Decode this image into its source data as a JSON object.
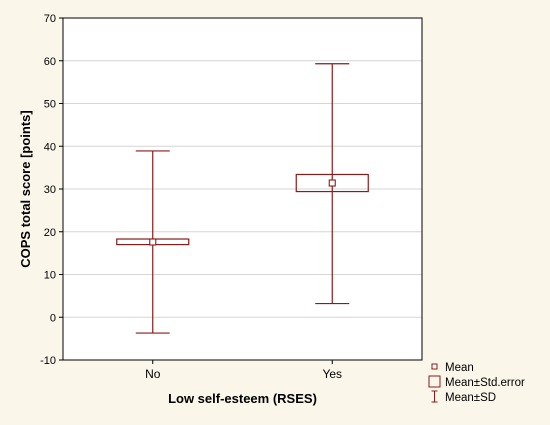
{
  "chart_data": {
    "type": "box",
    "title": "",
    "xlabel": "Low self-esteem (RSES)",
    "ylabel": "COPS total score [points]",
    "ylim": [
      -10,
      70
    ],
    "yticks": [
      -10,
      0,
      10,
      20,
      30,
      40,
      50,
      60,
      70
    ],
    "grid": true,
    "categories": [
      "No",
      "Yes"
    ],
    "series": [
      {
        "category": "No",
        "mean": 17.6,
        "se_low": 17.0,
        "se_high": 18.3,
        "sd_low": -3.7,
        "sd_high": 38.9
      },
      {
        "category": "Yes",
        "mean": 31.4,
        "se_low": 29.4,
        "se_high": 33.4,
        "sd_low": 3.2,
        "sd_high": 59.3
      }
    ],
    "legend": {
      "placement": "bottom-right",
      "items": [
        {
          "key": "mean",
          "label": "Mean"
        },
        {
          "key": "se",
          "label": "Mean±Std.error"
        },
        {
          "key": "sd",
          "label": "Mean±SD"
        }
      ]
    },
    "colors": {
      "box": "#8b1a1a",
      "grid": "#d6d6d6",
      "plot_bg": "#ffffff",
      "page_bg": "#fbf6ea"
    }
  }
}
